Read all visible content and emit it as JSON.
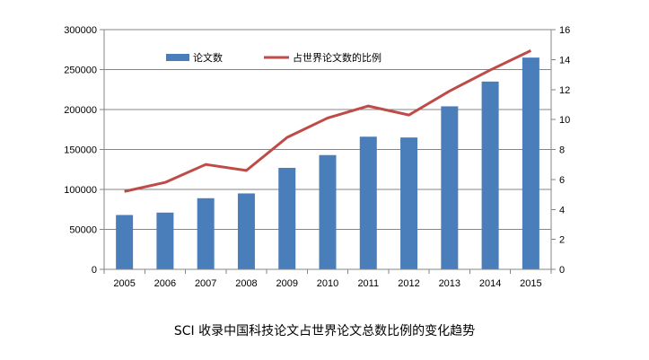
{
  "chart_data": {
    "type": "bar",
    "title": "SCI 收录中国科技论文占世界论文总数比例的变化趋势",
    "categories": [
      "2005",
      "2006",
      "2007",
      "2008",
      "2009",
      "2010",
      "2011",
      "2012",
      "2013",
      "2014",
      "2015"
    ],
    "series": [
      {
        "name": "论文数",
        "type": "bar",
        "axis": "left",
        "color": "#4a7ebb",
        "values": [
          68000,
          71000,
          89000,
          95000,
          127000,
          143000,
          166000,
          165000,
          204000,
          235000,
          265000
        ]
      },
      {
        "name": "占世界论文数的比例",
        "type": "line",
        "axis": "right",
        "color": "#be4b48",
        "values": [
          5.2,
          5.8,
          7.0,
          6.6,
          8.8,
          10.1,
          10.9,
          10.3,
          11.9,
          13.3,
          14.6
        ]
      }
    ],
    "y_left": {
      "min": 0,
      "max": 300000,
      "ticks": [
        "0",
        "50000",
        "100000",
        "150000",
        "200000",
        "250000",
        "300000"
      ]
    },
    "y_right": {
      "min": 0,
      "max": 16,
      "ticks": [
        "0",
        "2",
        "4",
        "6",
        "8",
        "10",
        "12",
        "14",
        "16"
      ]
    },
    "grid": true,
    "legend_position": "top-left"
  }
}
